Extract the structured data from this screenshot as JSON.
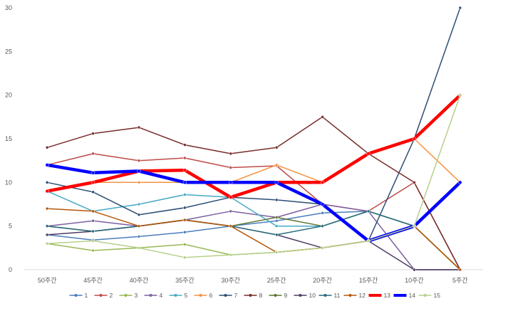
{
  "chart_data": {
    "type": "line",
    "categories": [
      "50주간",
      "45주간",
      "40주간",
      "35주간",
      "30주간",
      "25주간",
      "20주간",
      "15주간",
      "10주간",
      "5주간"
    ],
    "ylim": [
      0,
      30
    ],
    "yticks": [
      0,
      5,
      10,
      15,
      20,
      25,
      30
    ],
    "grid": false,
    "legend_position": "bottom",
    "series": [
      {
        "name": "1",
        "color": "#4a7ebb",
        "values": [
          4,
          3.4,
          3.8,
          4.3,
          5,
          5.6,
          6.5,
          6.7,
          5,
          10
        ]
      },
      {
        "name": "2",
        "color": "#be4b48",
        "values": [
          12,
          13.3,
          12.5,
          12.8,
          11.7,
          11.9,
          7.5,
          6.7,
          10,
          0
        ]
      },
      {
        "name": "3",
        "color": "#98b954",
        "values": [
          3,
          2.2,
          2.5,
          2.9,
          1.7,
          2,
          2.5,
          3.3,
          5,
          0
        ]
      },
      {
        "name": "4",
        "color": "#7d60a0",
        "values": [
          5,
          5.6,
          5,
          5.7,
          6.7,
          6,
          7.5,
          6.7,
          0,
          0
        ]
      },
      {
        "name": "5",
        "color": "#46aac5",
        "values": [
          9,
          6.7,
          7.5,
          8.6,
          8.3,
          5,
          5,
          6.7,
          5,
          0
        ]
      },
      {
        "name": "6",
        "color": "#f69240",
        "values": [
          9,
          10,
          10,
          10,
          10,
          12,
          10,
          13.3,
          15,
          10
        ]
      },
      {
        "name": "7",
        "color": "#2c4d75",
        "values": [
          10,
          8.9,
          6.3,
          7.1,
          8.3,
          8,
          7.5,
          3.3,
          15,
          30
        ]
      },
      {
        "name": "8",
        "color": "#772c2a",
        "values": [
          14,
          15.6,
          16.3,
          14.3,
          13.3,
          14,
          17.5,
          13.3,
          10,
          0
        ]
      },
      {
        "name": "9",
        "color": "#5f7530",
        "values": [
          5,
          4.4,
          5,
          5.7,
          5,
          6,
          5,
          6.7,
          5,
          0
        ]
      },
      {
        "name": "10",
        "color": "#4d3b62",
        "values": [
          4,
          4.4,
          5,
          5.7,
          5,
          4,
          2.5,
          3.3,
          0,
          0
        ]
      },
      {
        "name": "11",
        "color": "#276a7c",
        "values": [
          5,
          4.4,
          5,
          5.7,
          5,
          4,
          5,
          6.7,
          5,
          10
        ]
      },
      {
        "name": "12",
        "color": "#b65708",
        "values": [
          7,
          6.7,
          5,
          5.7,
          5,
          2,
          2.5,
          3.3,
          5,
          0
        ]
      },
      {
        "name": "13",
        "color": "#ff0000",
        "values": [
          9,
          10,
          11.3,
          11.4,
          8.3,
          10,
          10,
          13.3,
          15,
          20
        ]
      },
      {
        "name": "14",
        "color": "#0000ff",
        "values": [
          12,
          11.1,
          11.3,
          10,
          10,
          10,
          7.5,
          3.3,
          5,
          10
        ]
      },
      {
        "name": "15",
        "color": "#b7d08a",
        "values": [
          3,
          3.3,
          2.5,
          1.4,
          1.7,
          2,
          2.5,
          3.3,
          5,
          20
        ]
      }
    ]
  }
}
